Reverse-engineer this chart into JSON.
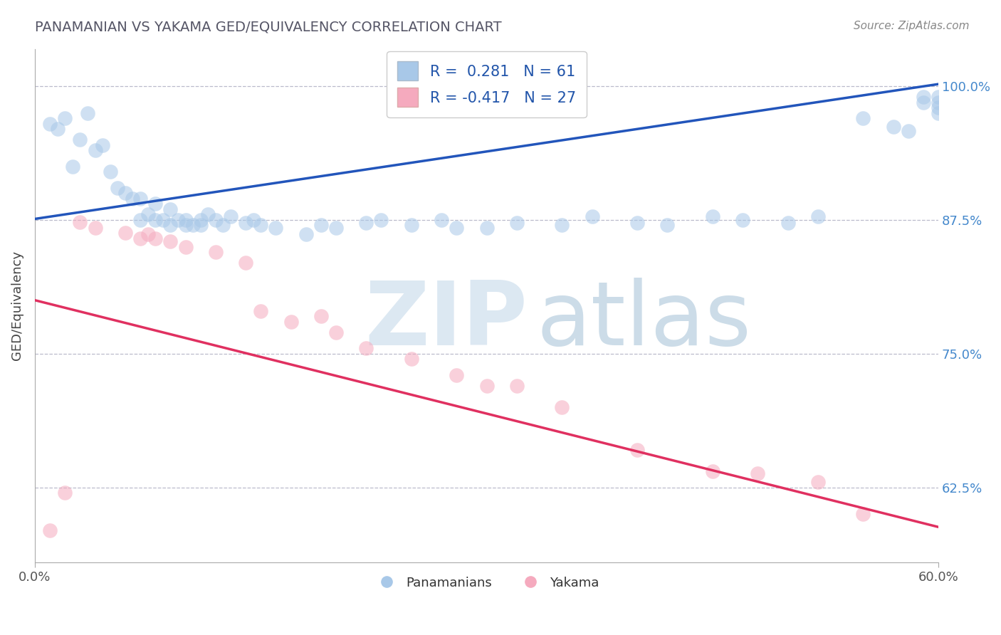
{
  "title": "PANAMANIAN VS YAKAMA GED/EQUIVALENCY CORRELATION CHART",
  "ylabel": "GED/Equivalency",
  "source_text": "Source: ZipAtlas.com",
  "xlim": [
    0.0,
    0.6
  ],
  "ylim": [
    0.555,
    1.035
  ],
  "y_ticks": [
    0.625,
    0.75,
    0.875,
    1.0
  ],
  "y_tick_labels": [
    "62.5%",
    "75.0%",
    "87.5%",
    "100.0%"
  ],
  "blue_r": 0.281,
  "blue_n": 61,
  "pink_r": -0.417,
  "pink_n": 27,
  "legend_labels": [
    "Panamanians",
    "Yakama"
  ],
  "blue_color": "#a8c8e8",
  "pink_color": "#f5aabe",
  "blue_line_color": "#2255bb",
  "pink_line_color": "#e03060",
  "title_color": "#555566",
  "blue_line_y0": 0.876,
  "blue_line_y1": 1.002,
  "pink_line_y0": 0.8,
  "pink_line_y1": 0.588,
  "blue_points_x": [
    0.01,
    0.015,
    0.02,
    0.025,
    0.03,
    0.035,
    0.04,
    0.045,
    0.05,
    0.055,
    0.06,
    0.065,
    0.07,
    0.07,
    0.075,
    0.08,
    0.08,
    0.085,
    0.09,
    0.09,
    0.095,
    0.1,
    0.1,
    0.105,
    0.11,
    0.11,
    0.115,
    0.12,
    0.125,
    0.13,
    0.14,
    0.145,
    0.15,
    0.16,
    0.18,
    0.19,
    0.2,
    0.22,
    0.23,
    0.25,
    0.27,
    0.28,
    0.3,
    0.32,
    0.35,
    0.37,
    0.4,
    0.42,
    0.45,
    0.47,
    0.5,
    0.52,
    0.55,
    0.57,
    0.58,
    0.59,
    0.59,
    0.6,
    0.6,
    0.6,
    0.6
  ],
  "blue_points_y": [
    0.965,
    0.96,
    0.97,
    0.925,
    0.95,
    0.975,
    0.94,
    0.945,
    0.92,
    0.905,
    0.9,
    0.895,
    0.895,
    0.875,
    0.88,
    0.875,
    0.89,
    0.875,
    0.885,
    0.87,
    0.875,
    0.87,
    0.875,
    0.87,
    0.875,
    0.87,
    0.88,
    0.875,
    0.87,
    0.878,
    0.872,
    0.875,
    0.87,
    0.868,
    0.862,
    0.87,
    0.868,
    0.872,
    0.875,
    0.87,
    0.875,
    0.868,
    0.868,
    0.872,
    0.87,
    0.878,
    0.872,
    0.87,
    0.878,
    0.875,
    0.872,
    0.878,
    0.97,
    0.962,
    0.958,
    0.99,
    0.985,
    0.99,
    0.985,
    0.98,
    0.975
  ],
  "pink_points_x": [
    0.01,
    0.02,
    0.03,
    0.04,
    0.06,
    0.07,
    0.075,
    0.08,
    0.09,
    0.1,
    0.12,
    0.14,
    0.15,
    0.17,
    0.19,
    0.2,
    0.22,
    0.25,
    0.28,
    0.3,
    0.32,
    0.35,
    0.4,
    0.45,
    0.48,
    0.52,
    0.55
  ],
  "pink_points_y": [
    0.585,
    0.62,
    0.873,
    0.868,
    0.863,
    0.858,
    0.862,
    0.858,
    0.855,
    0.85,
    0.845,
    0.835,
    0.79,
    0.78,
    0.785,
    0.77,
    0.755,
    0.745,
    0.73,
    0.72,
    0.72,
    0.7,
    0.66,
    0.64,
    0.638,
    0.63,
    0.6
  ]
}
